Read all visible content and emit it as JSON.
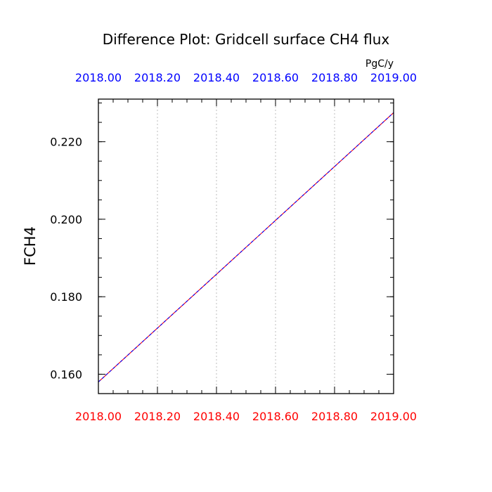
{
  "chart_data": {
    "type": "line",
    "title": "Difference Plot: Gridcell surface CH4 flux",
    "units": "PgC/y",
    "ylabel": "FCH4",
    "xlim": [
      2018.0,
      2019.0
    ],
    "ylim": [
      0.155,
      0.231
    ],
    "x_ticks": [
      2018.0,
      2018.2,
      2018.4,
      2018.6,
      2018.8,
      2019.0
    ],
    "x_tick_labels": [
      "2018.00",
      "2018.20",
      "2018.40",
      "2018.60",
      "2018.80",
      "2019.00"
    ],
    "y_ticks": [
      0.16,
      0.18,
      0.2,
      0.22
    ],
    "y_tick_labels": [
      "0.160",
      "0.180",
      "0.200",
      "0.220"
    ],
    "grid": "vertical dotted",
    "colors": {
      "bottom_axis_labels": "#ff0000",
      "top_axis_labels": "#0000ff",
      "series_top": "#0000ff",
      "series_bottom": "#ff0000"
    },
    "series": [
      {
        "x": [
          2018.0,
          2019.0
        ],
        "y": [
          0.158,
          0.2275
        ],
        "color": "#ff0000"
      },
      {
        "x": [
          2018.0,
          2019.0
        ],
        "y": [
          0.158,
          0.2275
        ],
        "color": "#0000ff",
        "dash": true
      }
    ]
  }
}
